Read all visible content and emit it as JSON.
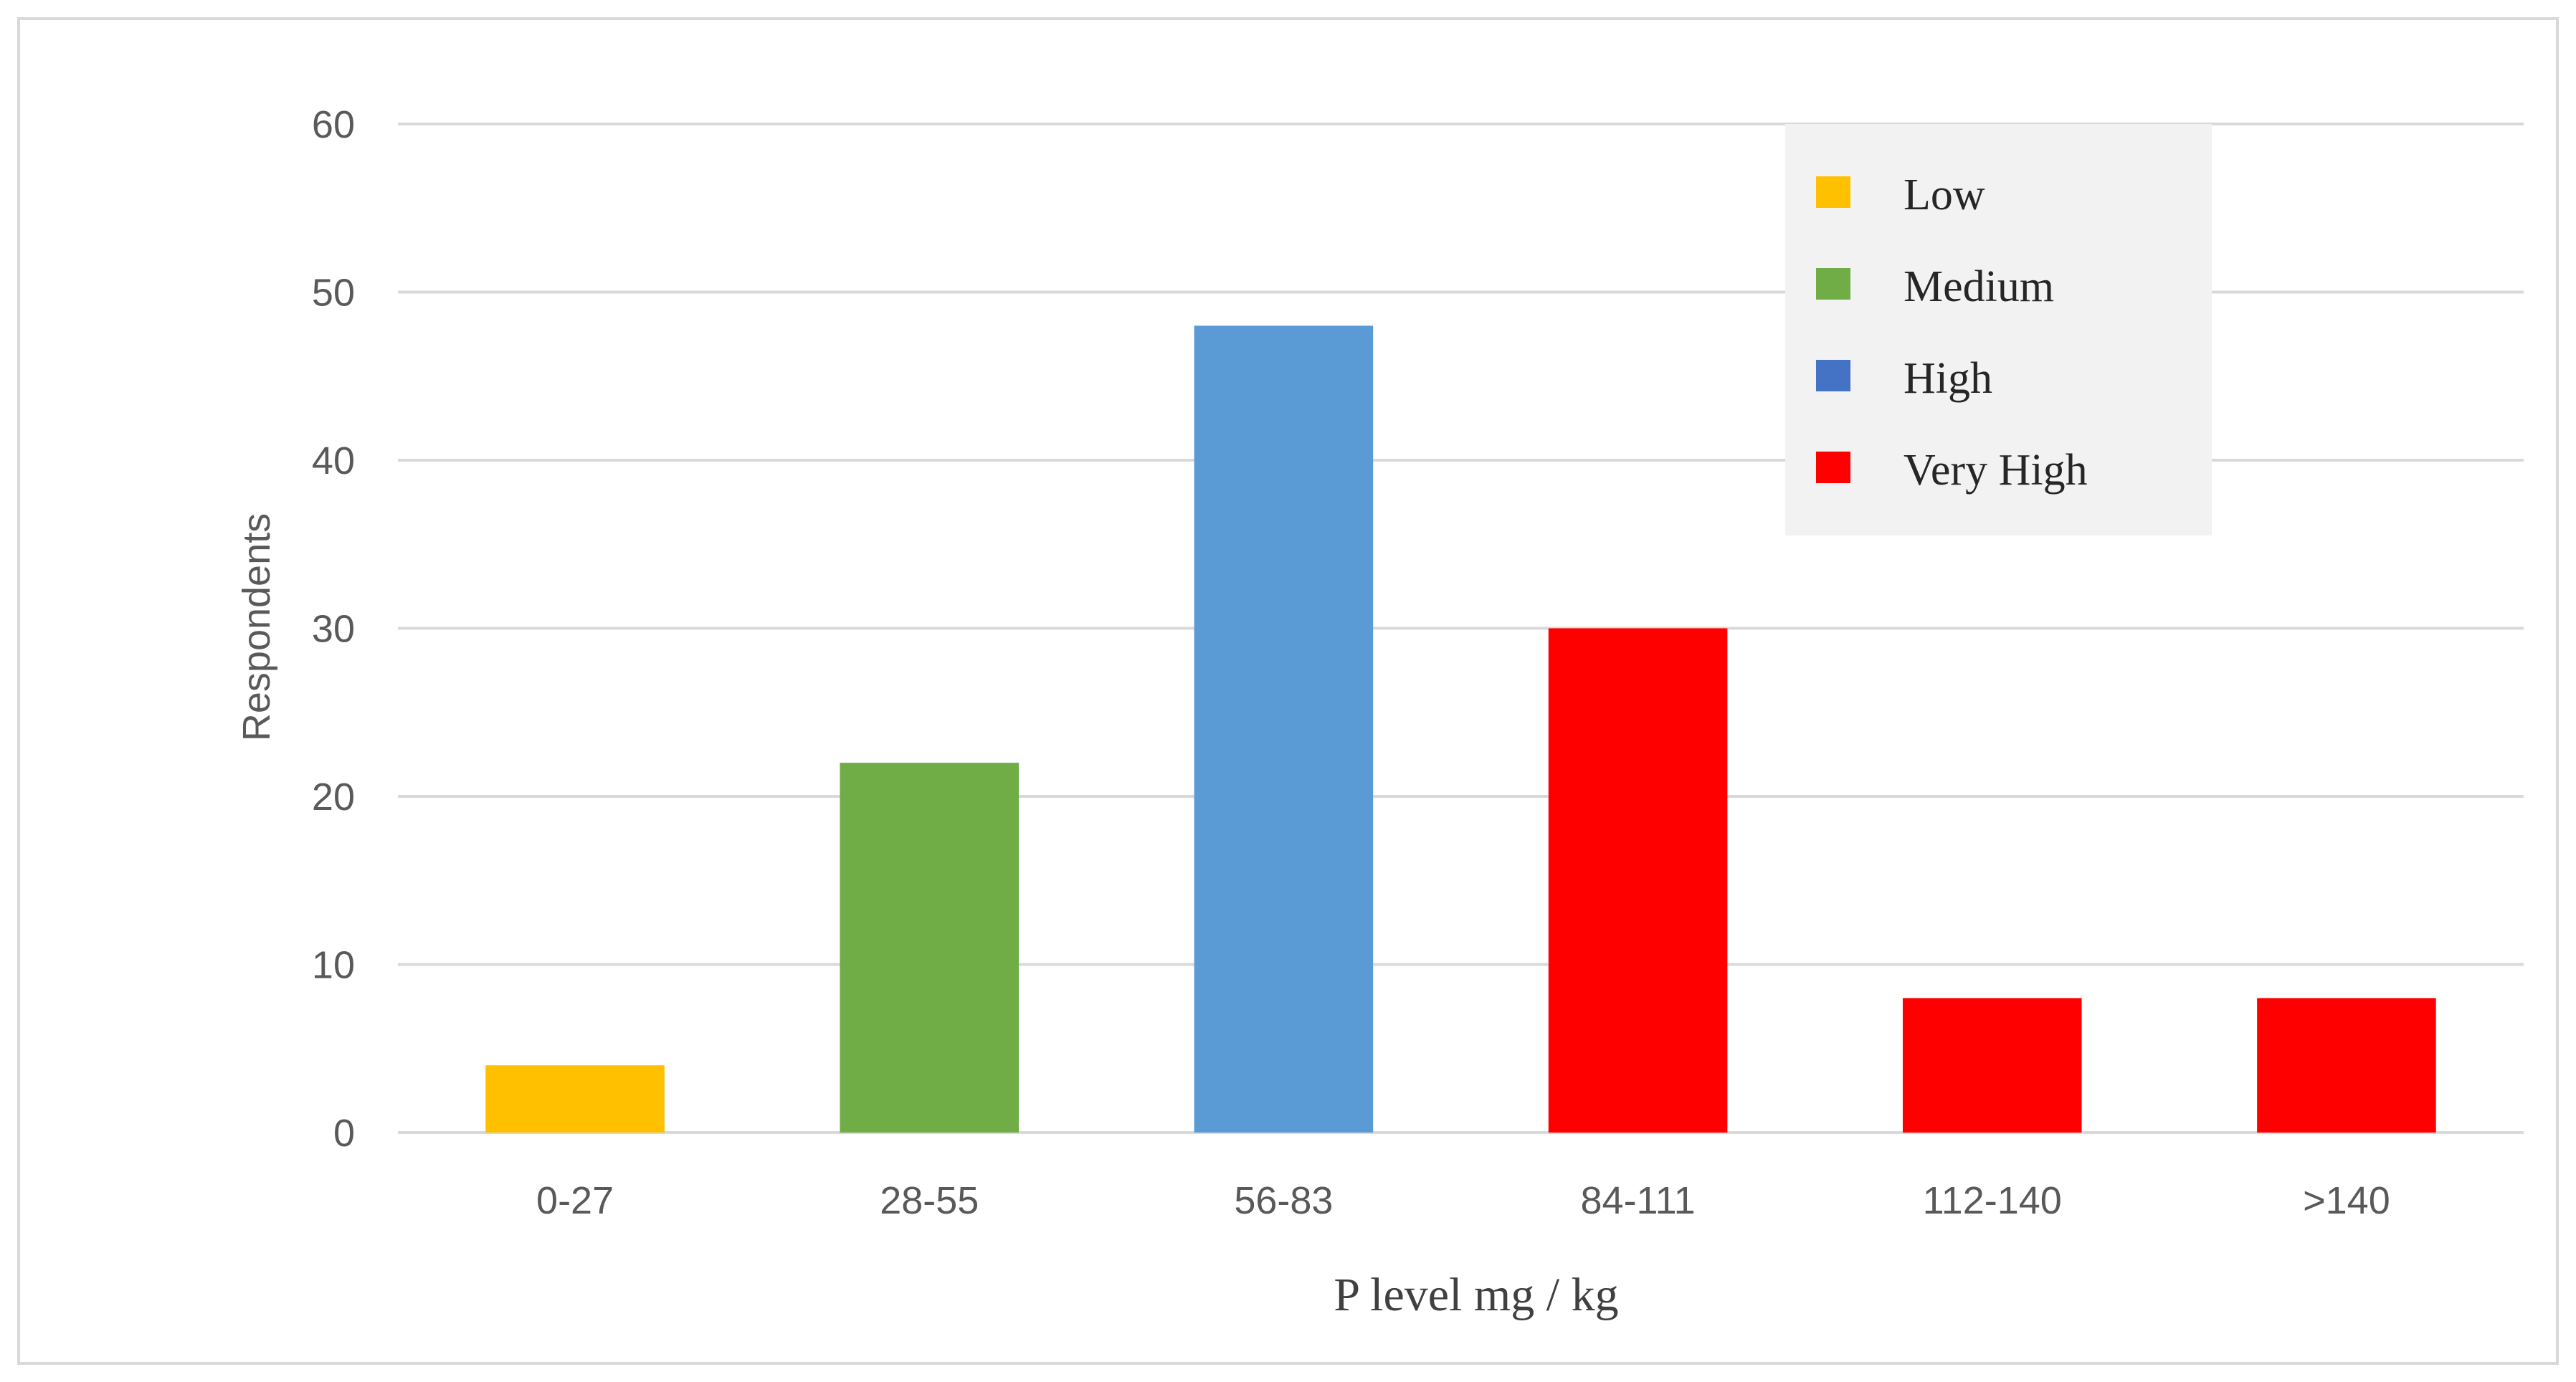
{
  "chart_data": {
    "type": "bar",
    "xlabel": "P level mg / kg",
    "ylabel": "Respondents",
    "ylim": [
      0,
      60
    ],
    "yticks": [
      0,
      10,
      20,
      30,
      40,
      50,
      60
    ],
    "grid": true,
    "legend_position": "top-right",
    "categories": [
      "0-27",
      "28-55",
      "56-83",
      "84-111",
      "112-140",
      ">140"
    ],
    "values": [
      4,
      22,
      48,
      30,
      8,
      8
    ],
    "bar_groups": [
      "Low",
      "Medium",
      "High",
      "Very High",
      "Very High",
      "Very High"
    ],
    "legend": [
      {
        "name": "Low",
        "color": "#FFC000"
      },
      {
        "name": "Medium",
        "color": "#70AD47"
      },
      {
        "name": "High",
        "color": "#4472C4"
      },
      {
        "name": "Very High",
        "color": "#FF0000"
      }
    ],
    "bar_colors": [
      "#FFC000",
      "#70AD47",
      "#5B9BD5",
      "#FF0000",
      "#FF0000",
      "#FF0000"
    ]
  }
}
